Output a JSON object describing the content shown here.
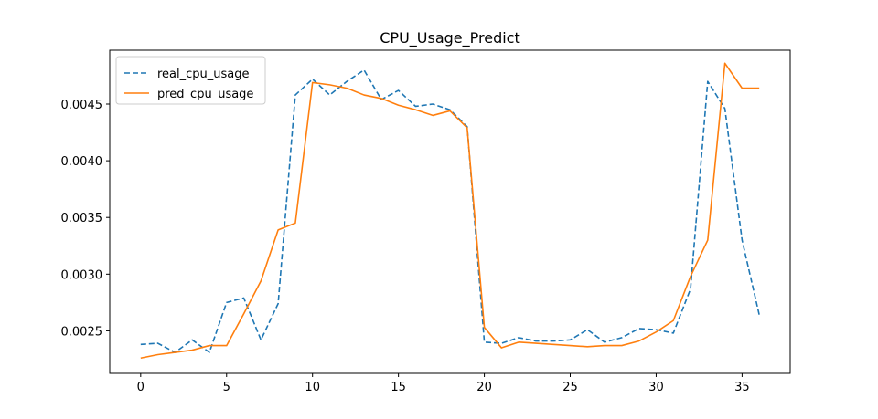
{
  "chart_data": {
    "type": "line",
    "title": "CPU_Usage_Predict",
    "xlabel": "",
    "ylabel": "",
    "xlim": [
      -1.8,
      37.8
    ],
    "ylim": [
      0.002125,
      0.004975
    ],
    "xticks": [
      0,
      5,
      10,
      15,
      20,
      25,
      30,
      35
    ],
    "yticks": [
      0.0025,
      0.003,
      0.0035,
      0.004,
      0.0045
    ],
    "ytick_labels": [
      "0.0025",
      "0.0030",
      "0.0035",
      "0.0040",
      "0.0045"
    ],
    "grid": false,
    "legend_position": "upper-left",
    "series": [
      {
        "name": "real_cpu_usage",
        "color": "#1f77b4",
        "style": "dashed",
        "x": [
          0,
          1,
          2,
          3,
          4,
          5,
          6,
          7,
          8,
          9,
          10,
          11,
          12,
          13,
          14,
          15,
          16,
          17,
          18,
          19,
          20,
          21,
          22,
          23,
          24,
          25,
          26,
          27,
          28,
          29,
          30,
          31,
          32,
          33,
          34,
          35,
          36
        ],
        "values": [
          0.00238,
          0.00239,
          0.00231,
          0.00242,
          0.00231,
          0.00275,
          0.00279,
          0.00242,
          0.00274,
          0.00458,
          0.00472,
          0.00458,
          0.0047,
          0.0048,
          0.00454,
          0.00462,
          0.00448,
          0.0045,
          0.00445,
          0.0043,
          0.0024,
          0.00239,
          0.00244,
          0.00241,
          0.00241,
          0.00242,
          0.00251,
          0.0024,
          0.00244,
          0.00252,
          0.00251,
          0.00248,
          0.00287,
          0.0047,
          0.00446,
          0.0033,
          0.00264
        ]
      },
      {
        "name": "pred_cpu_usage",
        "color": "#ff7f0e",
        "style": "solid",
        "x": [
          0,
          1,
          2,
          3,
          4,
          5,
          6,
          7,
          8,
          9,
          10,
          11,
          12,
          13,
          14,
          15,
          16,
          17,
          18,
          19,
          20,
          21,
          22,
          23,
          24,
          25,
          26,
          27,
          28,
          29,
          30,
          31,
          32,
          33,
          34,
          35,
          36
        ],
        "values": [
          0.00226,
          0.00229,
          0.00231,
          0.00233,
          0.00237,
          0.00237,
          0.00265,
          0.00294,
          0.00339,
          0.00345,
          0.00469,
          0.00467,
          0.00464,
          0.00458,
          0.00455,
          0.00449,
          0.00445,
          0.0044,
          0.00444,
          0.00429,
          0.00253,
          0.00235,
          0.0024,
          0.00239,
          0.00238,
          0.00237,
          0.00236,
          0.00237,
          0.00237,
          0.00241,
          0.00249,
          0.00259,
          0.00298,
          0.0033,
          0.00486,
          0.00464,
          0.00464
        ]
      }
    ]
  }
}
